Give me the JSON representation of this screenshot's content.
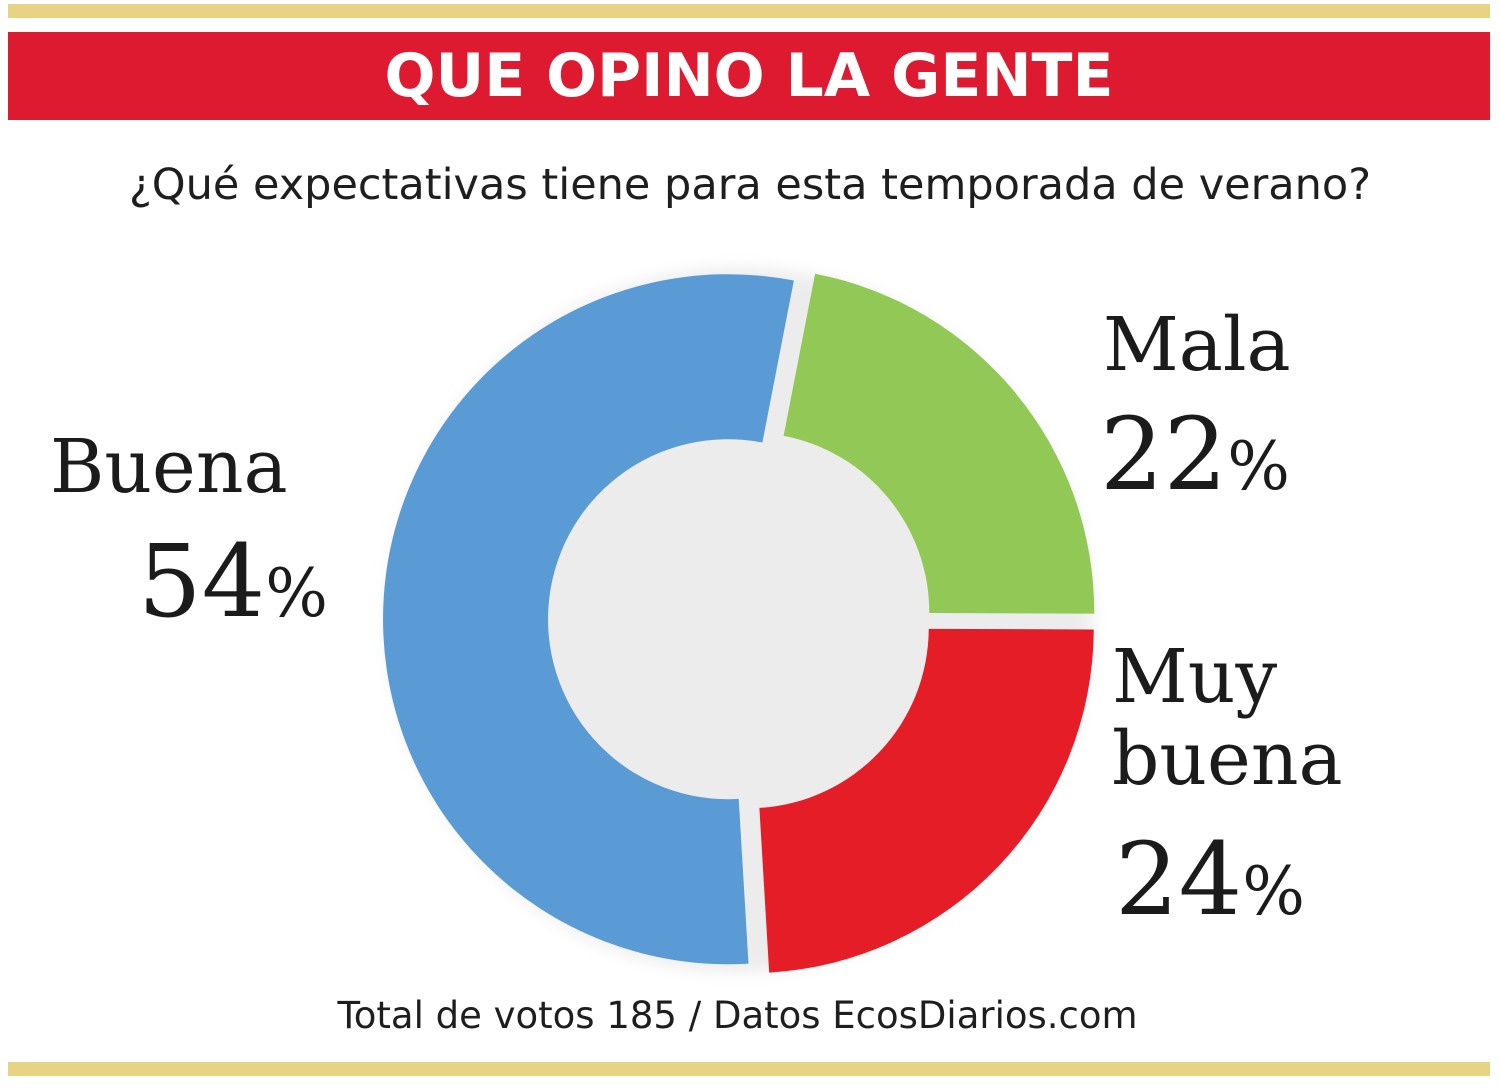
{
  "header": {
    "title": "QUE OPINO LA GENTE"
  },
  "question": "¿Qué expectativas tiene para esta temporada de verano?",
  "footer": "Total de votos 185 / Datos EcosDiarios.com",
  "chart_data": {
    "type": "pie",
    "variant": "donut",
    "title": "¿Qué expectativas tiene para esta temporada de verano?",
    "unit": "%",
    "slices": [
      {
        "label": "Mala",
        "value": 22,
        "display": "22",
        "color": "#92c855"
      },
      {
        "label": "Muy buena",
        "value": 24,
        "display": "24",
        "color": "#e41d27"
      },
      {
        "label": "Buena",
        "value": 54,
        "display": "54",
        "color": "#5b9bd5"
      }
    ],
    "labels": {
      "buena": {
        "name": "Buena",
        "pct": "54"
      },
      "mala": {
        "name": "Mala",
        "pct": "22"
      },
      "muy_buena": {
        "line1": "Muy",
        "line2": "buena",
        "pct": "24"
      }
    },
    "total_votes": 185,
    "legend": "none"
  }
}
